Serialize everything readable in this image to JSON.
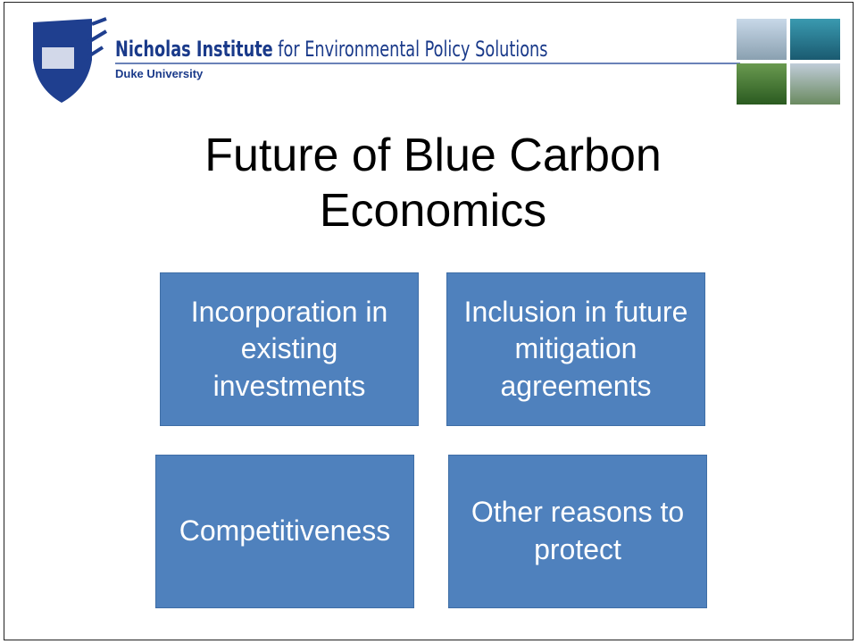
{
  "header": {
    "institute_bold": "Nicholas Institute",
    "institute_rest": " for Environmental Policy Solutions",
    "university": "Duke University"
  },
  "title": "Future of Blue Carbon Economics",
  "boxes": [
    {
      "text": "Incorporation in existing investments"
    },
    {
      "text": "Inclusion in future mitigation agreements"
    },
    {
      "text": "Competitiveness"
    },
    {
      "text": "Other reasons to protect"
    }
  ]
}
